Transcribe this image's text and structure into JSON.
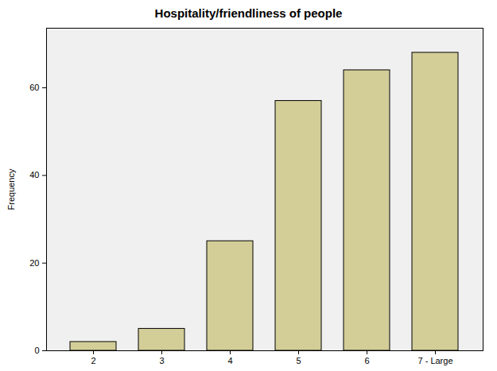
{
  "chart_data": {
    "type": "bar",
    "title": "Hospitality/friendliness of people",
    "y_label": "Frequency",
    "categories": [
      "2",
      "3",
      "4",
      "5",
      "6",
      "7 - Large"
    ],
    "values": [
      2,
      5,
      25,
      57,
      64,
      68
    ],
    "color": "#d3ce98",
    "ylim": [
      0,
      73.6
    ],
    "yticks": [
      0,
      20,
      40,
      60
    ],
    "grid": false
  }
}
